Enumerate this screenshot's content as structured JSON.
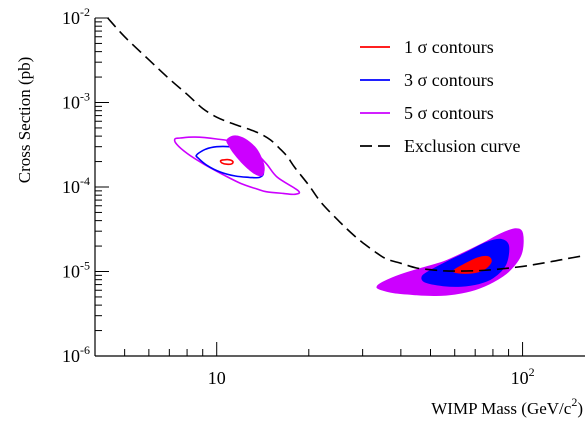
{
  "chart_data": {
    "type": "line",
    "xlabel": "WIMP Mass (GeV/c",
    "xlabel_sup": "2",
    "xlabel_close": ")",
    "ylabel": "Cross Section (pb)",
    "x_scale": "log",
    "y_scale": "log",
    "xlim": [
      4,
      160
    ],
    "ylim": [
      1e-06,
      0.01
    ],
    "grid": false,
    "legend_position": "top-right",
    "x_ticks": [
      {
        "value": 10,
        "base": "10",
        "exp": ""
      },
      {
        "value": 100,
        "base": "10",
        "exp": "2"
      }
    ],
    "y_ticks": [
      {
        "value": 1e-06,
        "base": "10",
        "exp": "-6"
      },
      {
        "value": 1e-05,
        "base": "10",
        "exp": "-5"
      },
      {
        "value": 0.0001,
        "base": "10",
        "exp": "-4"
      },
      {
        "value": 0.001,
        "base": "10",
        "exp": "-3"
      },
      {
        "value": 0.01,
        "base": "10",
        "exp": "-2"
      }
    ],
    "series": [
      {
        "name": "1 σ contours",
        "color": "#ff0000",
        "style": "contour"
      },
      {
        "name": "3 σ contours",
        "color": "#0000ff",
        "style": "contour"
      },
      {
        "name": "5 σ contours",
        "color": "#cc00ff",
        "style": "contour"
      },
      {
        "name": "Exclusion curve",
        "color": "#000000",
        "style": "dashed",
        "x": [
          4.4,
          5.0,
          6.0,
          7.0,
          8.0,
          9.0,
          10.0,
          11.0,
          12.0,
          13.0,
          14.0,
          15.0,
          16.0,
          17.0,
          18.0,
          20.0,
          22.0,
          25.0,
          28.0,
          30.0,
          33.0,
          36.0,
          40.0,
          45.0,
          50.0,
          55.0,
          60.0,
          70.0,
          80.0,
          100.0,
          120.0,
          140.0,
          160.0
        ],
        "y": [
          0.01,
          0.006,
          0.0032,
          0.0019,
          0.00125,
          0.00085,
          0.00067,
          0.00058,
          0.00052,
          0.00047,
          0.00042,
          0.00036,
          0.00029,
          0.00023,
          0.00017,
          0.000105,
          6.5e-05,
          4e-05,
          2.7e-05,
          2.2e-05,
          1.7e-05,
          1.4e-05,
          1.25e-05,
          1.1e-05,
          1.05e-05,
          1.02e-05,
          1.01e-05,
          1.02e-05,
          1.05e-05,
          1.15e-05,
          1.28e-05,
          1.42e-05,
          1.55e-05
        ]
      }
    ],
    "contours": {
      "low_mass": {
        "sigma5_outline": {
          "x": [
            7.3,
            7.6,
            8.5,
            10.0,
            11.5,
            13.0,
            14.5,
            15.8,
            18.5,
            18.0,
            16.5,
            14.5,
            13.5,
            12.0,
            10.5,
            9.0,
            8.0,
            7.4
          ],
          "y": [
            0.00037,
            0.00038,
            0.00039,
            0.00037,
            0.00034,
            0.00028,
            0.00019,
            0.00013,
            9e-05,
            8.2e-05,
            8.4e-05,
            8.8e-05,
            9.5e-05,
            0.00011,
            0.00014,
            0.00019,
            0.00025,
            0.00032
          ]
        },
        "sigma3_outline": {
          "x": [
            8.6,
            9.2,
            10.0,
            11.0,
            12.2,
            13.5,
            14.2,
            13.8,
            12.8,
            11.5,
            10.3,
            9.3,
            8.7
          ],
          "y": [
            0.00024,
            0.00028,
            0.0003,
            0.0003,
            0.00028,
            0.00022,
            0.00015,
            0.00013,
            0.00013,
            0.000135,
            0.00015,
            0.00018,
            0.00022
          ]
        },
        "sigma1_outline": {
          "x": [
            10.3,
            10.6,
            11.0,
            11.3,
            11.2,
            10.8,
            10.4
          ],
          "y": [
            0.000205,
            0.00021,
            0.00021,
            0.0002,
            0.000188,
            0.000186,
            0.000193
          ]
        },
        "sigma5_filled": {
          "x": [
            10.8,
            11.3,
            12.0,
            12.8,
            13.5,
            14.0,
            14.3,
            14.1,
            13.5,
            12.8,
            12.0,
            11.3,
            10.9
          ],
          "y": [
            0.00036,
            0.0004,
            0.00039,
            0.00034,
            0.00028,
            0.00022,
            0.00017,
            0.000138,
            0.00014,
            0.00016,
            0.0002,
            0.00026,
            0.00032
          ]
        }
      },
      "high_mass": {
        "sigma5_filled": {
          "x": [
            34.0,
            38.0,
            45.0,
            52.0,
            60.0,
            70.0,
            80.0,
            90.0,
            99.0,
            100.0,
            95.0,
            85.0,
            75.0,
            65.0,
            55.0,
            47.0,
            40.0,
            35.0,
            33.5
          ],
          "y": [
            6.2e-06,
            5.6e-06,
            5.3e-06,
            5.2e-06,
            5.4e-06,
            6.1e-06,
            7.5e-06,
            1e-05,
            1.6e-05,
            2.8e-05,
            3.2e-05,
            2.8e-05,
            2.2e-05,
            1.7e-05,
            1.3e-05,
            1.1e-05,
            9.2e-06,
            7.5e-06,
            6.7e-06
          ]
        },
        "sigma3_filled": {
          "x": [
            48.0,
            55.0,
            63.0,
            72.0,
            80.0,
            88.0,
            90.0,
            85.0,
            76.0,
            66.0,
            57.0,
            50.0,
            47.0
          ],
          "y": [
            7.5e-06,
            6.8e-06,
            6.7e-06,
            7.2e-06,
            8.4e-06,
            1.2e-05,
            2e-05,
            2.4e-05,
            2.2e-05,
            1.7e-05,
            1.32e-05,
            1.03e-05,
            8.8e-06
          ]
        },
        "sigma1_filled": {
          "x": [
            60.0,
            65.0,
            71.0,
            76.0,
            79.0,
            77.0,
            71.0,
            64.0,
            60.0
          ],
          "y": [
            9.8e-06,
            9.5e-06,
            9.8e-06,
            1.1e-05,
            1.32e-05,
            1.5e-05,
            1.44e-05,
            1.2e-05,
            1.05e-05
          ]
        }
      }
    }
  }
}
